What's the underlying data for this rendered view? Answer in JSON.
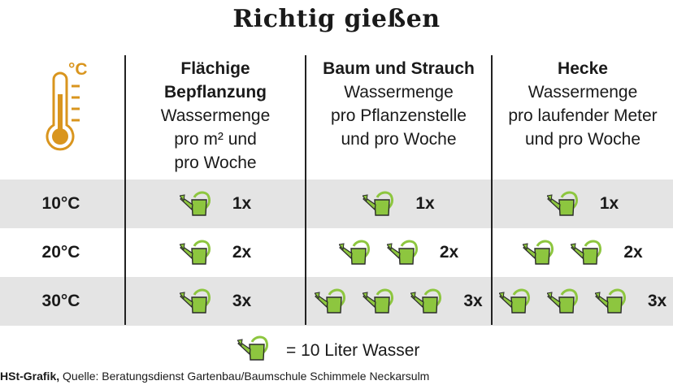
{
  "title": "Richtig gießen",
  "unit_label": "°C",
  "columns": [
    {
      "heading": "Flächige\nBepflanzung",
      "sub": "Wassermenge\npro m² und\npro Woche"
    },
    {
      "heading": "Baum und Strauch",
      "sub": "Wassermenge\npro Pflanzenstelle\nund pro Woche"
    },
    {
      "heading": "Hecke",
      "sub": "Wassermenge\npro laufender Meter\nund pro Woche"
    }
  ],
  "rows": [
    {
      "temp": "10°C",
      "counts": [
        "1x",
        "1x",
        "1x"
      ],
      "cans": [
        1,
        1,
        1
      ]
    },
    {
      "temp": "20°C",
      "counts": [
        "2x",
        "2x",
        "2x"
      ],
      "cans": [
        1,
        2,
        2
      ]
    },
    {
      "temp": "30°C",
      "counts": [
        "3x",
        "3x",
        "3x"
      ],
      "cans": [
        1,
        3,
        3
      ]
    }
  ],
  "legend": {
    "text": "= 10 Liter Wasser"
  },
  "source": {
    "label": "HSt-Grafik,",
    "text": " Quelle: Beratungsdienst Gartenbau/Baumschule Schimmele Neckarsulm"
  },
  "colors": {
    "thermometer": "#d9951e",
    "can": "#8dc63f",
    "can_outline": "#2b2b2b",
    "row_shade": "#e4e4e4"
  },
  "icons": {
    "thermometer": "thermometer-icon",
    "can": "watering-can-icon"
  }
}
